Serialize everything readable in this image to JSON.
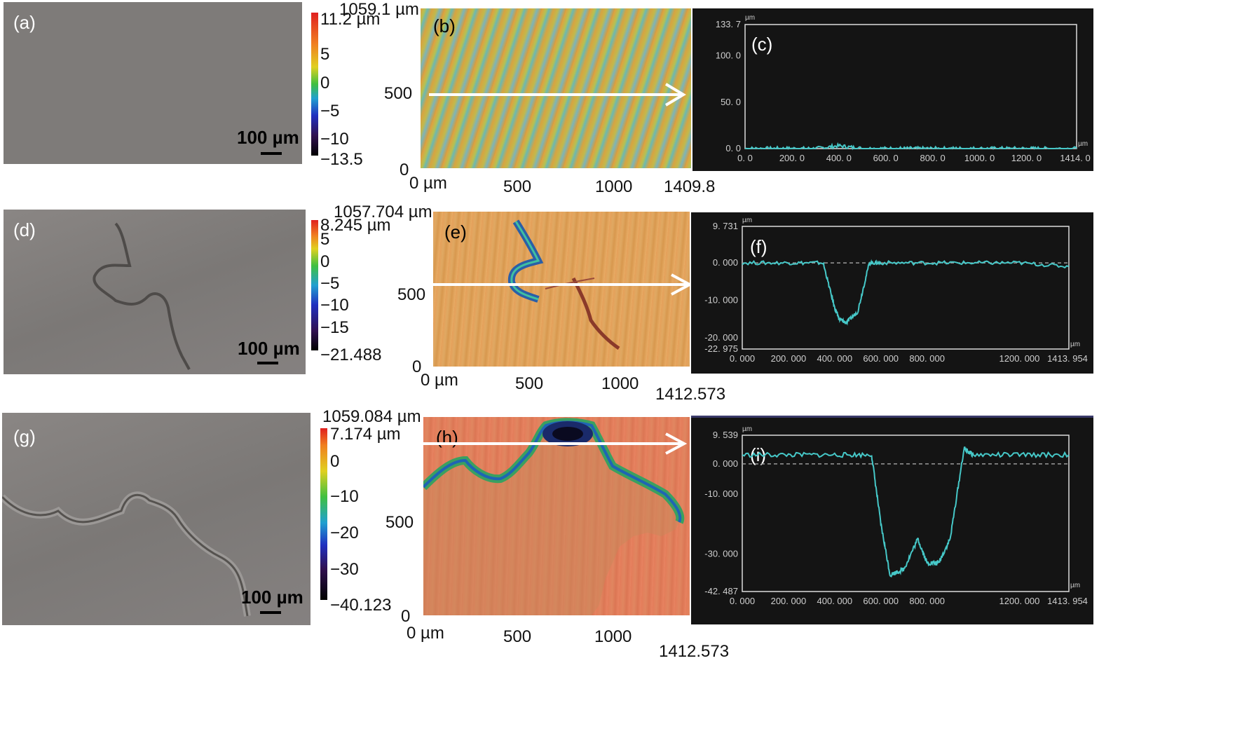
{
  "rows": [
    {
      "sem": {
        "label": "(a)",
        "scale": "100 µm"
      },
      "colorbar": {
        "top": "11.2 µm",
        "ticks": [
          "5",
          "0",
          "−5",
          "−10"
        ],
        "bottom": "−13.5"
      },
      "map": {
        "label": "(b)",
        "y_top": "1059.1 µm",
        "y_ticks": [
          "500",
          "0"
        ],
        "x_ticks": [
          "0 µm",
          "500",
          "1000",
          "1409.8"
        ]
      },
      "profile": {
        "label": "(c)",
        "unit": "µm",
        "y_ticks": [
          "133. 7",
          "100. 0",
          "50. 0",
          "0. 0"
        ],
        "x_ticks": [
          "0. 0",
          "200. 0",
          "400. 0",
          "600. 0",
          "800. 0",
          "1000. 0",
          "1200. 0",
          "1414. 0"
        ]
      }
    },
    {
      "sem": {
        "label": "(d)",
        "scale": "100 µm"
      },
      "colorbar": {
        "top": "8.245 µm",
        "ticks": [
          "5",
          "0",
          "−5",
          "−10",
          "−15"
        ],
        "bottom": "−21.488"
      },
      "map": {
        "label": "(e)",
        "y_top": "1057.704 µm",
        "y_ticks": [
          "500",
          "0"
        ],
        "x_ticks": [
          "0 µm",
          "500",
          "1000"
        ],
        "x_end": "1412.573"
      },
      "profile": {
        "label": "(f)",
        "unit": "µm",
        "y_ticks": [
          "9. 731",
          "0. 000",
          "-10. 000",
          "-20. 000",
          "-22. 975"
        ],
        "x_ticks": [
          "0. 000",
          "200. 000",
          "400. 000",
          "600. 000",
          "800. 000",
          "1200. 000",
          "1413. 954"
        ]
      }
    },
    {
      "sem": {
        "label": "(g)",
        "scale": "100 µm"
      },
      "colorbar": {
        "top": "7.174 µm",
        "ticks": [
          "0",
          "−10",
          "−20",
          "−30"
        ],
        "bottom": "−40.123"
      },
      "map": {
        "label": "(h)",
        "y_top": "1059.084 µm",
        "y_ticks": [
          "500",
          "0"
        ],
        "x_ticks": [
          "0 µm",
          "500",
          "1000"
        ],
        "x_end": "1412.573"
      },
      "profile": {
        "label": "(i)",
        "unit": "µm",
        "y_ticks": [
          "9. 539",
          "0. 000",
          "-10. 000",
          "-30. 000",
          "-42. 487"
        ],
        "x_ticks": [
          "0. 000",
          "200. 000",
          "400. 000",
          "600. 000",
          "800. 000",
          "1200. 000",
          "1413. 954"
        ]
      }
    }
  ],
  "chart_data": [
    {
      "type": "line",
      "panel": "(c)",
      "xlim": [
        0,
        1414
      ],
      "ylim": [
        0,
        133.7
      ],
      "x": [
        0,
        100,
        200,
        300,
        400,
        500,
        600,
        700,
        800,
        900,
        1000,
        1100,
        1200,
        1300,
        1414
      ],
      "y": [
        0,
        0,
        0,
        0,
        3,
        0,
        0,
        0,
        0,
        0,
        0,
        0,
        0,
        0,
        0
      ]
    },
    {
      "type": "line",
      "panel": "(f)",
      "xlim": [
        0,
        1414
      ],
      "ylim": [
        -22.975,
        9.731
      ],
      "x": [
        0,
        200,
        350,
        400,
        420,
        450,
        500,
        550,
        600,
        800,
        1000,
        1200,
        1414
      ],
      "y": [
        0,
        0,
        0,
        -12,
        -15,
        -16,
        -13,
        0,
        0,
        0,
        0,
        0,
        -1
      ]
    },
    {
      "type": "line",
      "panel": "(i)",
      "xlim": [
        0,
        1414
      ],
      "ylim": [
        -42.487,
        9.539
      ],
      "x": [
        0,
        200,
        400,
        560,
        600,
        640,
        700,
        760,
        800,
        850,
        900,
        960,
        1000,
        1200,
        1414
      ],
      "y": [
        3,
        3,
        3,
        3,
        -20,
        -37,
        -35,
        -25,
        -33,
        -33,
        -25,
        5,
        3,
        3,
        3
      ]
    }
  ]
}
